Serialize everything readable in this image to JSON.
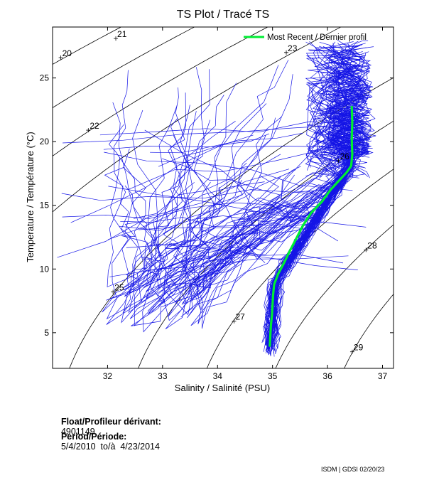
{
  "chart_data": {
    "type": "scatter",
    "title": "TS Plot / Tracé TS",
    "xlabel": "Salinity / Salinité (PSU)",
    "ylabel": "Temperature / Température (°C)",
    "xlim": [
      31.0,
      37.2
    ],
    "ylim": [
      2.2,
      29.0
    ],
    "x_ticks": [
      32,
      33,
      34,
      35,
      36,
      37
    ],
    "y_ticks": [
      5,
      10,
      15,
      20,
      25
    ],
    "legend": {
      "label": "Most Recent / Dernier profil",
      "position": "top-right"
    },
    "density_contours": [
      {
        "label": "20",
        "label_at": {
          "s": 31.15,
          "t": 26.6
        }
      },
      {
        "label": "21",
        "label_at": {
          "s": 32.15,
          "t": 28.1
        }
      },
      {
        "label": "22",
        "label_at": {
          "s": 31.65,
          "t": 20.9
        }
      },
      {
        "label": "23",
        "label_at": {
          "s": 35.25,
          "t": 27.0
        }
      },
      {
        "label": "25",
        "label_at": {
          "s": 32.1,
          "t": 8.2
        }
      },
      {
        "label": "26",
        "label_at": {
          "s": 36.2,
          "t": 18.5
        }
      },
      {
        "label": "27",
        "label_at": {
          "s": 34.3,
          "t": 5.9
        }
      },
      {
        "label": "28",
        "label_at": {
          "s": 36.7,
          "t": 11.5
        }
      },
      {
        "label": "29",
        "label_at": {
          "s": 36.45,
          "t": 3.5
        }
      }
    ],
    "series": [
      {
        "name": "Most Recent / Dernier profil",
        "color": "#00ee33",
        "points": [
          [
            34.95,
            3.9
          ],
          [
            34.96,
            4.8
          ],
          [
            34.97,
            5.6
          ],
          [
            34.99,
            6.4
          ],
          [
            35.0,
            7.2
          ],
          [
            35.01,
            8.0
          ],
          [
            35.03,
            8.8
          ],
          [
            35.1,
            9.6
          ],
          [
            35.2,
            10.4
          ],
          [
            35.3,
            11.3
          ],
          [
            35.42,
            12.3
          ],
          [
            35.55,
            13.4
          ],
          [
            35.7,
            14.4
          ],
          [
            35.9,
            15.3
          ],
          [
            36.05,
            16.2
          ],
          [
            36.2,
            16.9
          ],
          [
            36.35,
            17.6
          ],
          [
            36.43,
            18.1
          ],
          [
            36.45,
            19.0
          ],
          [
            36.44,
            20.2
          ],
          [
            36.45,
            21.5
          ],
          [
            36.44,
            22.8
          ]
        ]
      }
    ]
  },
  "float_info": {
    "float_label": "Float/Profileur dérivant:",
    "float_id": "4901149",
    "period_label": "Period/Période:",
    "period_value": "5/4/2010  to/à  4/23/2014"
  },
  "footer": {
    "credit": "ISDM | GDSI  02/20/23"
  },
  "colors": {
    "history": "#1515e6",
    "recent": "#00ee33",
    "contour": "#000000"
  }
}
